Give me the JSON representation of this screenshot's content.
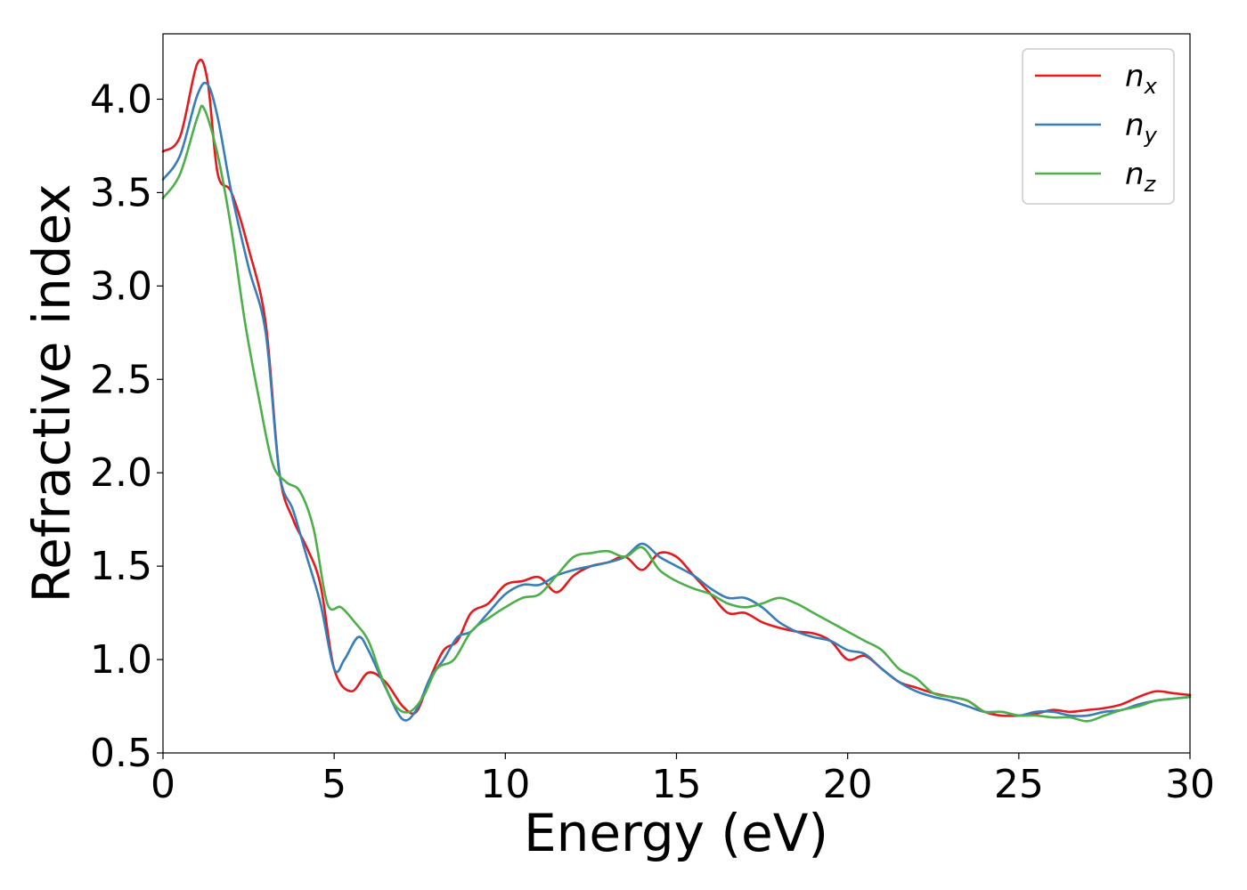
{
  "chart_data": {
    "type": "line",
    "xlabel": "Energy (eV)",
    "ylabel": "Refractive index",
    "xlim": [
      0,
      30
    ],
    "ylim": [
      0.5,
      4.35
    ],
    "xticks": [
      "0",
      "5",
      "10",
      "15",
      "20",
      "25",
      "30"
    ],
    "yticks": [
      "0.5",
      "1.0",
      "1.5",
      "2.0",
      "2.5",
      "3.0",
      "3.5",
      "4.0"
    ],
    "grid": false,
    "legend_position": "top-right",
    "series": [
      {
        "name": "n",
        "subscript": "x",
        "color": "#e41a1c",
        "x": [
          0,
          0.5,
          1.0,
          1.3,
          1.6,
          2.0,
          2.5,
          3.0,
          3.4,
          3.8,
          4.2,
          4.6,
          5.0,
          5.5,
          6.0,
          6.5,
          7.0,
          7.4,
          7.8,
          8.2,
          8.6,
          9.0,
          9.5,
          10.0,
          10.5,
          11.0,
          11.5,
          12.0,
          12.5,
          13.0,
          13.5,
          14.0,
          14.5,
          15.0,
          15.5,
          16.0,
          16.5,
          17.0,
          17.5,
          18.0,
          18.5,
          19.0,
          19.5,
          20.0,
          20.5,
          21.0,
          21.5,
          22.0,
          22.5,
          23.0,
          23.5,
          24.0,
          24.5,
          25.0,
          25.5,
          26.0,
          26.5,
          27.0,
          27.5,
          28.0,
          28.5,
          29.0,
          29.5,
          30.0
        ],
        "y": [
          3.72,
          3.8,
          4.19,
          4.1,
          3.6,
          3.5,
          3.2,
          2.8,
          2.0,
          1.75,
          1.6,
          1.4,
          0.95,
          0.83,
          0.93,
          0.88,
          0.75,
          0.72,
          0.9,
          1.05,
          1.1,
          1.25,
          1.3,
          1.4,
          1.42,
          1.44,
          1.36,
          1.45,
          1.5,
          1.52,
          1.55,
          1.48,
          1.57,
          1.55,
          1.45,
          1.35,
          1.25,
          1.25,
          1.2,
          1.17,
          1.15,
          1.14,
          1.1,
          1.0,
          1.02,
          0.95,
          0.88,
          0.85,
          0.82,
          0.8,
          0.78,
          0.72,
          0.7,
          0.7,
          0.71,
          0.73,
          0.72,
          0.73,
          0.74,
          0.76,
          0.8,
          0.83,
          0.82,
          0.81
        ]
      },
      {
        "name": "n",
        "subscript": "y",
        "color": "#377eb8",
        "x": [
          0,
          0.5,
          1.0,
          1.3,
          1.6,
          2.0,
          2.5,
          3.0,
          3.4,
          3.8,
          4.2,
          4.6,
          5.0,
          5.3,
          5.7,
          6.0,
          6.5,
          7.0,
          7.4,
          7.8,
          8.2,
          8.6,
          9.0,
          9.5,
          10.0,
          10.5,
          11.0,
          11.5,
          12.0,
          12.5,
          13.0,
          13.5,
          14.0,
          14.5,
          15.0,
          15.5,
          16.0,
          16.5,
          17.0,
          17.5,
          18.0,
          18.5,
          19.0,
          19.5,
          20.0,
          20.5,
          21.0,
          21.5,
          22.0,
          22.5,
          23.0,
          23.5,
          24.0,
          24.5,
          25.0,
          25.5,
          26.0,
          26.5,
          27.0,
          27.5,
          28.0,
          28.5,
          29.0,
          29.5,
          30.0
        ],
        "y": [
          3.57,
          3.7,
          4.02,
          4.08,
          3.9,
          3.5,
          3.1,
          2.75,
          2.0,
          1.8,
          1.55,
          1.3,
          0.95,
          1.0,
          1.12,
          1.05,
          0.85,
          0.68,
          0.73,
          0.9,
          1.0,
          1.12,
          1.15,
          1.25,
          1.35,
          1.4,
          1.4,
          1.45,
          1.48,
          1.5,
          1.52,
          1.55,
          1.62,
          1.55,
          1.5,
          1.45,
          1.38,
          1.33,
          1.33,
          1.28,
          1.2,
          1.15,
          1.12,
          1.1,
          1.05,
          1.03,
          0.95,
          0.88,
          0.83,
          0.8,
          0.78,
          0.75,
          0.72,
          0.72,
          0.7,
          0.72,
          0.72,
          0.7,
          0.7,
          0.72,
          0.73,
          0.76,
          0.78,
          0.79,
          0.8
        ]
      },
      {
        "name": "n",
        "subscript": "z",
        "color": "#4daf4a",
        "x": [
          0,
          0.5,
          1.0,
          1.2,
          1.6,
          2.0,
          2.4,
          2.8,
          3.2,
          3.6,
          4.0,
          4.4,
          4.8,
          5.2,
          5.6,
          6.0,
          6.4,
          6.8,
          7.2,
          7.6,
          8.0,
          8.5,
          9.0,
          9.5,
          10.0,
          10.5,
          11.0,
          11.5,
          12.0,
          12.5,
          13.0,
          13.5,
          14.0,
          14.5,
          15.0,
          15.5,
          16.0,
          16.5,
          17.0,
          17.5,
          18.0,
          18.5,
          19.0,
          19.5,
          20.0,
          20.5,
          21.0,
          21.5,
          22.0,
          22.5,
          23.0,
          23.5,
          24.0,
          24.5,
          25.0,
          25.5,
          26.0,
          26.5,
          27.0,
          27.5,
          28.0,
          28.5,
          29.0,
          29.5,
          30.0
        ],
        "y": [
          3.47,
          3.6,
          3.9,
          3.95,
          3.7,
          3.3,
          2.8,
          2.4,
          2.05,
          1.95,
          1.9,
          1.7,
          1.3,
          1.28,
          1.2,
          1.1,
          0.9,
          0.75,
          0.72,
          0.8,
          0.95,
          1.0,
          1.15,
          1.22,
          1.28,
          1.33,
          1.35,
          1.45,
          1.55,
          1.57,
          1.58,
          1.55,
          1.6,
          1.48,
          1.42,
          1.38,
          1.35,
          1.3,
          1.28,
          1.3,
          1.33,
          1.3,
          1.25,
          1.2,
          1.15,
          1.1,
          1.05,
          0.95,
          0.9,
          0.82,
          0.8,
          0.78,
          0.72,
          0.72,
          0.7,
          0.7,
          0.69,
          0.69,
          0.67,
          0.7,
          0.73,
          0.75,
          0.78,
          0.79,
          0.8
        ]
      }
    ]
  }
}
